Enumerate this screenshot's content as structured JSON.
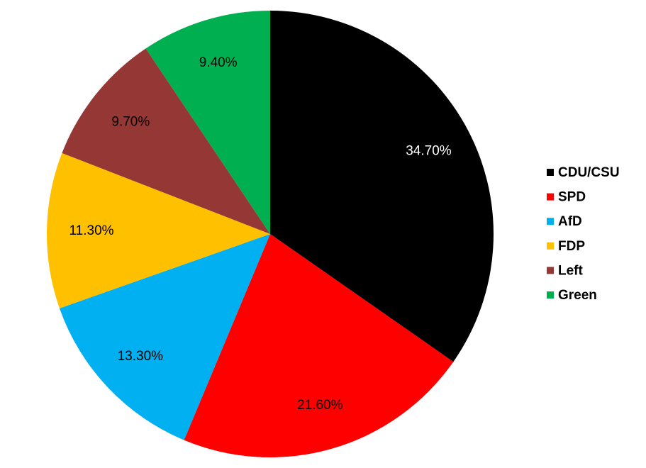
{
  "chart_data": {
    "type": "pie",
    "categories": [
      "CDU/CSU",
      "SPD",
      "AfD",
      "FDP",
      "Left",
      "Green"
    ],
    "values": [
      34.7,
      21.6,
      13.3,
      11.3,
      9.7,
      9.4
    ],
    "value_labels": [
      "34.70%",
      "21.60%",
      "13.30%",
      "11.30%",
      "9.70%",
      "9.40%"
    ],
    "colors": [
      "#000000",
      "#ff0000",
      "#00b0f0",
      "#ffc000",
      "#953735",
      "#00b050"
    ],
    "legend": "right"
  }
}
